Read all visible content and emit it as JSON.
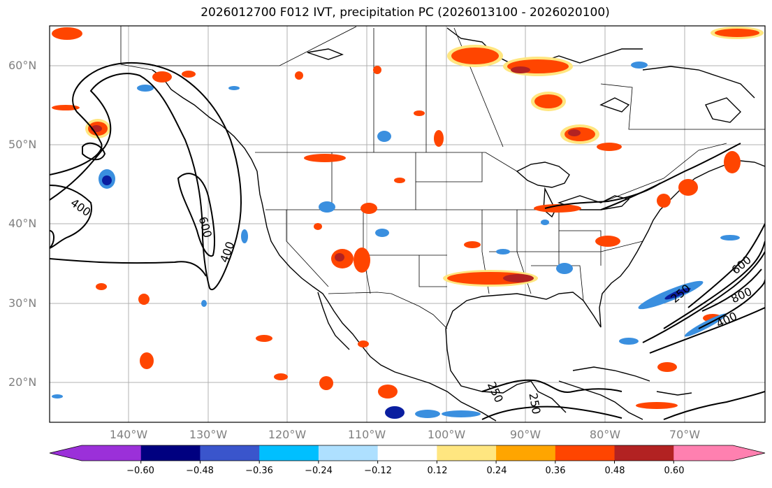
{
  "title": "2026012700 F012 IVT, precipitation PC (2026013100 - 2026020100)",
  "map": {
    "lat_labels": [
      "60°N",
      "50°N",
      "40°N",
      "30°N",
      "20°N"
    ],
    "lon_labels": [
      "140°W",
      "130°W",
      "120°W",
      "110°W",
      "100°W",
      "90°W",
      "80°W",
      "70°W"
    ],
    "ivt_contour_labels": [
      "400",
      "600",
      "400",
      "250",
      "600",
      "800",
      "400",
      "250",
      "250"
    ]
  },
  "colorbar": {
    "ticks": [
      "−0.60",
      "−0.48",
      "−0.36",
      "−0.24",
      "−0.12",
      "0.12",
      "0.24",
      "0.36",
      "0.48",
      "0.60"
    ],
    "colors": {
      "under": "#9b30d9",
      "bins": [
        "#000080",
        "#3a55cc",
        "#00bfff",
        "#aee0ff",
        "#ffffff",
        "#ffe680",
        "#ffa500",
        "#ff4500",
        "#b22222"
      ],
      "over": "#ff80b0"
    }
  },
  "colors": {
    "positive_high": "#b22222",
    "positive_mid": "#ff4500",
    "positive_low": "#ffa500",
    "positive_edge": "#ffe680",
    "negative_low": "#aee0ff",
    "negative_mid": "#3a8fdf",
    "negative_high": "#0a1ea0",
    "grid": "#b0b0b0"
  }
}
